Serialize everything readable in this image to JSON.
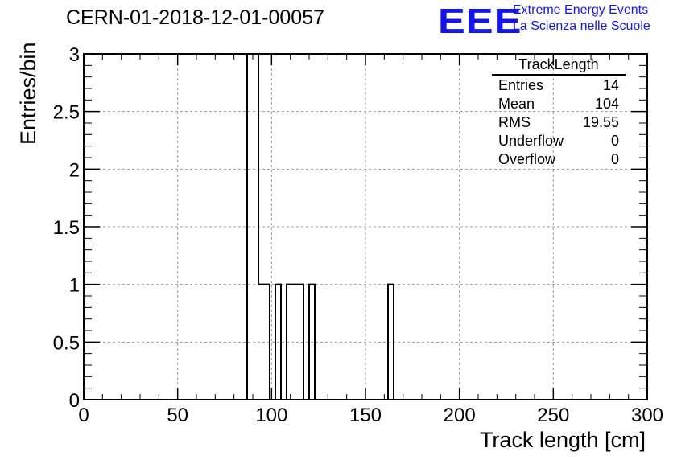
{
  "title": "CERN-01-2018-12-01-00057",
  "logo": {
    "mark": "EEE",
    "line1": "Extreme Energy Events",
    "line2": "La Scienza nelle Scuole",
    "color": "#1515e8"
  },
  "stats": {
    "title": "TrackLength",
    "rows": [
      {
        "label": "Entries",
        "value": "14"
      },
      {
        "label": "Mean",
        "value": "104"
      },
      {
        "label": "RMS",
        "value": "19.55"
      },
      {
        "label": "Underflow",
        "value": "0"
      },
      {
        "label": "Overflow",
        "value": "0"
      }
    ]
  },
  "chart_data": {
    "type": "bar",
    "histogram": true,
    "xlabel": "Track length [cm]",
    "ylabel": "Entries/bin",
    "xlim": [
      0,
      300
    ],
    "ylim": [
      0,
      3
    ],
    "grid": true,
    "xticks": [
      "0",
      "50",
      "100",
      "150",
      "200",
      "250",
      "300"
    ],
    "yticks": [
      "0",
      "0.5",
      "1",
      "1.5",
      "2",
      "2.5",
      "3"
    ],
    "bin_width": 3,
    "bins": [
      {
        "x": 87,
        "value": 3
      },
      {
        "x": 90,
        "value": 3
      },
      {
        "x": 93,
        "value": 1
      },
      {
        "x": 96,
        "value": 1
      },
      {
        "x": 102,
        "value": 1
      },
      {
        "x": 108,
        "value": 1
      },
      {
        "x": 111,
        "value": 1
      },
      {
        "x": 114,
        "value": 1
      },
      {
        "x": 120,
        "value": 1
      },
      {
        "x": 162,
        "value": 1
      }
    ]
  }
}
